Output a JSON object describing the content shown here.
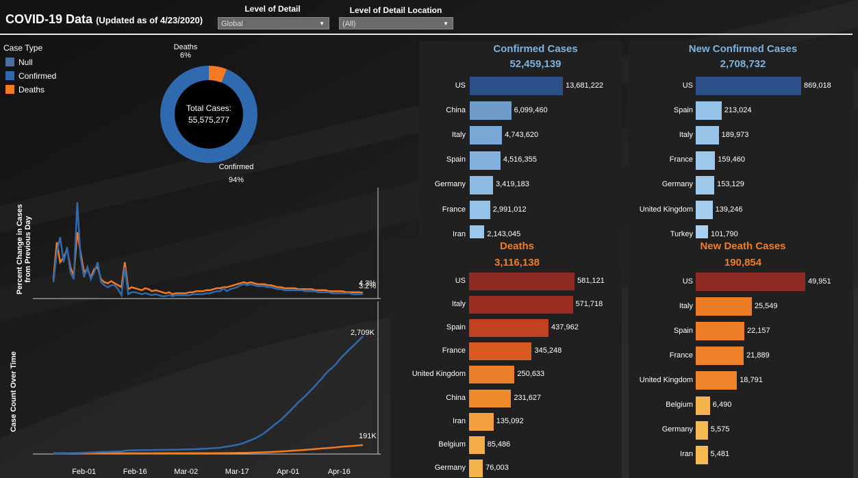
{
  "header": {
    "title": "COVID-19 Data",
    "subtitle": "(Updated as of 4/23/2020)"
  },
  "filters": {
    "detail_label": "Level of Detail",
    "detail_value": "Global",
    "location_label": "Level of Detail Location",
    "location_value": "(All)"
  },
  "legend": {
    "title": "Case Type",
    "items": [
      {
        "label": "Null",
        "color": "#4e6f9c"
      },
      {
        "label": "Confirmed",
        "color": "#2f6ab1"
      },
      {
        "label": "Deaths",
        "color": "#f47b20"
      }
    ]
  },
  "chart_data": [
    {
      "type": "pie",
      "center_label": "Total Cases:",
      "center_value": "55,575,277",
      "slices": [
        {
          "name": "Deaths",
          "pct_label": "6%",
          "value": 6,
          "color": "#f47b20"
        },
        {
          "name": "Confirmed",
          "pct_label": "94%",
          "value": 94,
          "color": "#2f6ab1"
        }
      ]
    },
    {
      "type": "bar",
      "title": "Confirmed Cases",
      "total": "52,459,139",
      "title_color": "#7db3e0",
      "categories": [
        "US",
        "China",
        "Italy",
        "Spain",
        "Germany",
        "France",
        "Iran"
      ],
      "values": [
        13681222,
        6099460,
        4743620,
        4516355,
        3419183,
        2991012,
        2143045
      ],
      "labels": [
        "13,681,222",
        "6,099,460",
        "4,743,620",
        "4,516,355",
        "3,419,183",
        "2,991,012",
        "2,143,045"
      ],
      "colors": [
        "#2b4f86",
        "#6e9bc9",
        "#7aa8d6",
        "#84b2de",
        "#8dbbe3",
        "#94c1e7",
        "#9ac6ea"
      ]
    },
    {
      "type": "bar",
      "title": "New Confirmed Cases",
      "total": "2,708,732",
      "title_color": "#7db3e0",
      "categories": [
        "US",
        "Spain",
        "Italy",
        "France",
        "Germany",
        "United Kingdom",
        "Turkey"
      ],
      "values": [
        869018,
        213024,
        189973,
        159460,
        153129,
        139246,
        101790
      ],
      "labels": [
        "869,018",
        "213,024",
        "189,973",
        "159,460",
        "153,129",
        "139,246",
        "101,790"
      ],
      "colors": [
        "#2b4f86",
        "#94c1e7",
        "#99c5ea",
        "#9dc8eb",
        "#a0caec",
        "#a4cced",
        "#a9d0ef"
      ]
    },
    {
      "type": "bar",
      "title": "Deaths",
      "total": "3,116,138",
      "title_color": "#f47b20",
      "categories": [
        "US",
        "Italy",
        "Spain",
        "France",
        "United Kingdom",
        "China",
        "Iran",
        "Belgium",
        "Germany"
      ],
      "values": [
        581121,
        571718,
        437962,
        345248,
        250633,
        231627,
        135092,
        85486,
        76003
      ],
      "labels": [
        "581,121",
        "571,718",
        "437,962",
        "345,248",
        "250,633",
        "231,627",
        "135,092",
        "85,486",
        "76,003"
      ],
      "colors": [
        "#8e2a22",
        "#9b2d23",
        "#c2401f",
        "#db5a22",
        "#ec7f29",
        "#ef8a2c",
        "#f3a040",
        "#f4ad48",
        "#f5b44e"
      ]
    },
    {
      "type": "bar",
      "title": "New Death Cases",
      "total": "190,854",
      "title_color": "#f47b20",
      "categories": [
        "US",
        "Italy",
        "Spain",
        "France",
        "United Kingdom",
        "Belgium",
        "Germany",
        "Iran"
      ],
      "values": [
        49951,
        25549,
        22157,
        21889,
        18791,
        6490,
        5575,
        5481
      ],
      "labels": [
        "49,951",
        "25,549",
        "22,157",
        "21,889",
        "18,791",
        "6,490",
        "5,575",
        "5,481"
      ],
      "colors": [
        "#8e2a22",
        "#ed7a25",
        "#ee7f28",
        "#ee812a",
        "#f0862b",
        "#f5b44e",
        "#f6b850",
        "#f6ba52"
      ]
    },
    {
      "type": "line",
      "ylabel": "Percent Change in Cases from Previous Day",
      "ylabel_lines": [
        "Percent Change in Cases",
        "from Previous Day"
      ],
      "x": [
        "2020-01-23",
        "2020-01-24",
        "2020-01-25",
        "2020-01-26",
        "2020-01-27",
        "2020-01-28",
        "2020-01-29",
        "2020-01-30",
        "2020-01-31",
        "2020-02-01",
        "2020-02-02",
        "2020-02-03",
        "2020-02-04",
        "2020-02-05",
        "2020-02-06",
        "2020-02-07",
        "2020-02-08",
        "2020-02-09",
        "2020-02-10",
        "2020-02-11",
        "2020-02-12",
        "2020-02-13",
        "2020-02-14",
        "2020-02-15",
        "2020-02-16",
        "2020-02-17",
        "2020-02-18",
        "2020-02-19",
        "2020-02-20",
        "2020-02-21",
        "2020-02-22",
        "2020-02-23",
        "2020-02-24",
        "2020-02-25",
        "2020-02-26",
        "2020-02-27",
        "2020-02-28",
        "2020-02-29",
        "2020-03-01",
        "2020-03-02",
        "2020-03-03",
        "2020-03-04",
        "2020-03-05",
        "2020-03-06",
        "2020-03-07",
        "2020-03-08",
        "2020-03-09",
        "2020-03-10",
        "2020-03-11",
        "2020-03-12",
        "2020-03-13",
        "2020-03-14",
        "2020-03-15",
        "2020-03-16",
        "2020-03-17",
        "2020-03-18",
        "2020-03-19",
        "2020-03-20",
        "2020-03-21",
        "2020-03-22",
        "2020-03-23",
        "2020-03-24",
        "2020-03-25",
        "2020-03-26",
        "2020-03-27",
        "2020-03-28",
        "2020-03-29",
        "2020-03-30",
        "2020-03-31",
        "2020-04-01",
        "2020-04-02",
        "2020-04-03",
        "2020-04-04",
        "2020-04-05",
        "2020-04-06",
        "2020-04-07",
        "2020-04-08",
        "2020-04-09",
        "2020-04-10",
        "2020-04-11",
        "2020-04-12",
        "2020-04-13",
        "2020-04-14",
        "2020-04-15",
        "2020-04-16",
        "2020-04-17",
        "2020-04-18",
        "2020-04-19",
        "2020-04-20",
        "2020-04-21",
        "2020-04-22",
        "2020-04-23"
      ],
      "series": [
        {
          "color": "#2f6ab1",
          "end_label": "3.2%",
          "values": [
            15,
            45,
            60,
            35,
            50,
            25,
            18,
            95,
            40,
            20,
            30,
            18,
            25,
            35,
            15,
            12,
            10,
            12,
            12,
            8,
            2,
            30,
            3,
            5,
            5,
            4,
            3,
            4,
            3,
            2,
            3,
            2,
            1,
            1,
            2,
            1,
            2,
            2,
            2,
            2,
            2,
            3,
            3,
            3,
            3,
            4,
            4,
            5,
            6,
            6,
            9,
            6,
            8,
            9,
            10,
            12,
            13,
            12,
            13,
            12,
            11,
            11,
            11,
            10,
            10,
            9,
            8,
            8,
            7,
            7,
            7,
            7,
            7,
            7,
            6,
            6,
            6,
            6,
            5,
            5,
            5,
            5,
            4,
            4,
            4,
            4,
            4,
            4,
            3,
            3,
            3,
            3.2
          ]
        },
        {
          "color": "#f47b20",
          "end_label": "4.3%",
          "values": [
            18,
            55,
            35,
            40,
            48,
            30,
            22,
            65,
            45,
            25,
            28,
            20,
            28,
            30,
            18,
            15,
            14,
            16,
            14,
            12,
            10,
            35,
            8,
            10,
            9,
            8,
            7,
            9,
            8,
            6,
            7,
            6,
            5,
            4,
            5,
            3,
            4,
            4,
            4,
            4,
            5,
            5,
            6,
            6,
            6,
            7,
            7,
            8,
            9,
            9,
            10,
            10,
            11,
            12,
            13,
            14,
            15,
            14,
            15,
            14,
            13,
            13,
            13,
            12,
            12,
            11,
            10,
            10,
            9,
            9,
            9,
            9,
            8,
            8,
            8,
            8,
            8,
            7,
            7,
            7,
            7,
            6,
            6,
            6,
            6,
            6,
            5,
            5,
            5,
            5,
            5,
            4.3
          ]
        }
      ]
    },
    {
      "type": "line",
      "ylabel": "Case Count Over Time",
      "x_ticks": [
        "Feb-01",
        "Feb-16",
        "Mar-02",
        "Mar-17",
        "Apr-01",
        "Apr-16"
      ],
      "series": [
        {
          "color": "#2f6ab1",
          "end_label": "2,709K",
          "values": [
            0.6,
            0.9,
            1.4,
            2.1,
            2.9,
            5.6,
            6.2,
            8.2,
            9.9,
            11.9,
            16.8,
            19.9,
            24.5,
            28.3,
            31.5,
            34.4,
            37.1,
            40.2,
            42.8,
            44.8,
            45.2,
            60.4,
            66.9,
            69.0,
            71.2,
            73.3,
            75.2,
            75.7,
            76.7,
            77.8,
            78.6,
            78.9,
            79.6,
            80.4,
            81.4,
            82.7,
            84.1,
            86.0,
            88.4,
            90.3,
            92.8,
            95.1,
            97.9,
            101.8,
            105.8,
            109.8,
            113.6,
            118.6,
            125.9,
            128.3,
            145.2,
            156.1,
            167.4,
            181.5,
            197.2,
            214.9,
            242.7,
            272.2,
            304.5,
            337.0,
            378.2,
            418.0,
            467.7,
            529.6,
            593.3,
            660.7,
            720.1,
            782.4,
            857.5,
            933.0,
            1013.3,
            1095.9,
            1176.1,
            1249.8,
            1321.5,
            1396.5,
            1480.2,
            1565.3,
            1657.5,
            1735.0,
            1835.0,
            1917.0,
            1976.2,
            2056.1,
            2152.6,
            2240.2,
            2317.8,
            2401.4,
            2472.3,
            2549.3,
            2623.4,
            2708.7
          ]
        },
        {
          "color": "#f47b20",
          "end_label": "191K",
          "values": [
            0.02,
            0.03,
            0.04,
            0.06,
            0.08,
            0.13,
            0.13,
            0.17,
            0.21,
            0.26,
            0.36,
            0.43,
            0.49,
            0.56,
            0.64,
            0.72,
            0.81,
            0.91,
            1.01,
            1.11,
            1.12,
            1.37,
            1.52,
            1.67,
            1.77,
            1.87,
            2.0,
            2.12,
            2.25,
            2.25,
            2.44,
            2.47,
            2.7,
            2.76,
            2.81,
            2.86,
            2.94,
            2.99,
            3.09,
            3.16,
            3.25,
            3.35,
            3.46,
            3.56,
            3.8,
            3.99,
            4.26,
            4.61,
            4.91,
            5.83,
            5.86,
            6.52,
            7.17,
            8.07,
            9.04,
            10.3,
            11.8,
            13.6,
            15.6,
            17.5,
            19.9,
            22.3,
            25.3,
            28.9,
            32.2,
            36.0,
            39.4,
            43.2,
            48.2,
            53.0,
            58.9,
            64.6,
            70.1,
            75.2,
            80.4,
            86.8,
            94.0,
            100.7,
            107.6,
            113.7,
            119.4,
            125.0,
            131.8,
            138.7,
            147.6,
            155.3,
            161.2,
            166.4,
            171.0,
            177.2,
            183.6,
            190.9
          ]
        }
      ]
    }
  ]
}
